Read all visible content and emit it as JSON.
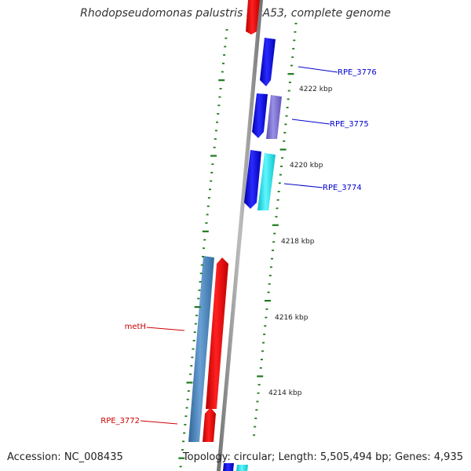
{
  "title": "Rhodopseudomonas palustris BisA53, complete genome",
  "footer": {
    "accession": "Accession: NC_008435",
    "summary": "Topology: circular; Length: 5,505,494 bp; Genes: 4,935"
  },
  "scale_labels": [
    {
      "text": "4222 kbp",
      "kbp": 4222
    },
    {
      "text": "4220 kbp",
      "kbp": 4220
    },
    {
      "text": "4218 kbp",
      "kbp": 4218
    },
    {
      "text": "4216 kbp",
      "kbp": 4216
    },
    {
      "text": "4214 kbp",
      "kbp": 4214
    }
  ],
  "gene_labels": [
    {
      "text": "RPE_3776",
      "color": "#0000cc"
    },
    {
      "text": "RPE_3775",
      "color": "#0000cc"
    },
    {
      "text": "RPE_3774",
      "color": "#0000cc"
    },
    {
      "text": "metH",
      "color": "#cc0000"
    },
    {
      "text": "RPE_3772",
      "color": "#cc0000"
    }
  ],
  "colors": {
    "backbone": "#8c8c8c",
    "tick": "#1e7a1e",
    "forward_cds": "#1a1aee",
    "reverse_cds": "#ee1111",
    "light_purple": "#7b6fd0",
    "cyan": "#22e6ee",
    "steel_blue": "#4d86bd"
  }
}
